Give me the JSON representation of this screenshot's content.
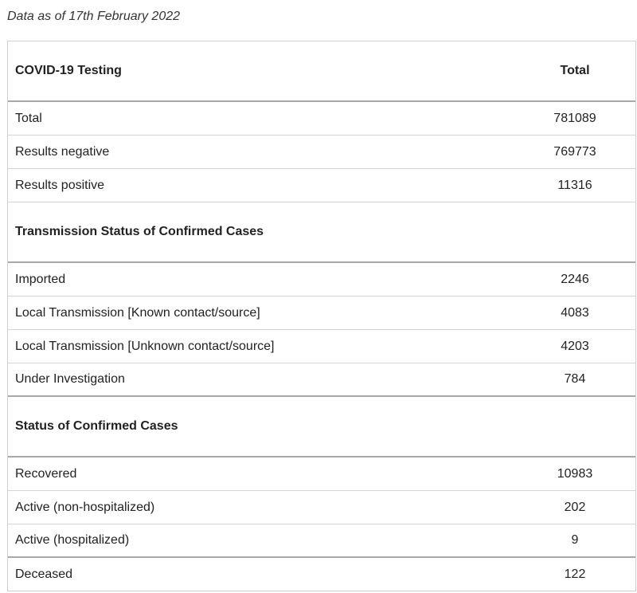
{
  "caption": "Data as of 17th February 2022",
  "header": {
    "title": "COVID-19 Testing",
    "total_label": "Total"
  },
  "testing_rows": [
    {
      "label": "Total",
      "value": "781089"
    },
    {
      "label": "Results negative",
      "value": "769773"
    },
    {
      "label": "Results positive",
      "value": "11316"
    }
  ],
  "transmission": {
    "title": "Transmission Status of Confirmed Cases",
    "rows": [
      {
        "label": "Imported",
        "value": "2246"
      },
      {
        "label": "Local Transmission [Known contact/source]",
        "value": "4083"
      },
      {
        "label": "Local Transmission [Unknown contact/source]",
        "value": "4203"
      },
      {
        "label": "Under Investigation",
        "value": "784"
      }
    ]
  },
  "status": {
    "title": "Status of Confirmed Cases",
    "rows": [
      {
        "label": "Recovered",
        "value": "10983"
      },
      {
        "label": "Active (non-hospitalized)",
        "value": "202"
      },
      {
        "label": "Active (hospitalized)",
        "value": "9"
      },
      {
        "label": "Deceased",
        "value": "122"
      }
    ]
  }
}
